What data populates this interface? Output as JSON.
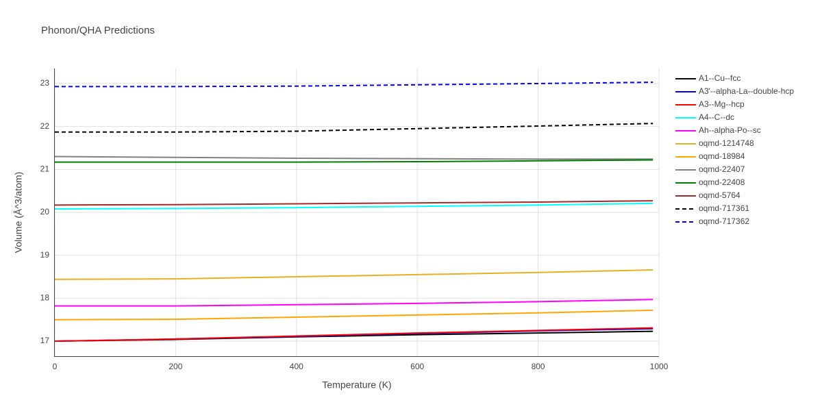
{
  "chart_data": {
    "type": "line",
    "title": "Phonon/QHA Predictions",
    "x_label": "Temperature (K)",
    "y_label": "Volume (Å^3/atom)",
    "x": [
      0,
      200,
      400,
      600,
      800,
      990
    ],
    "xlim": [
      0,
      1000
    ],
    "xticks": [
      0,
      200,
      400,
      600,
      800,
      1000
    ],
    "ylim": [
      16.65,
      23.35
    ],
    "yticks": [
      17,
      18,
      19,
      20,
      21,
      22,
      23
    ],
    "grid": true,
    "legend": "right",
    "series": [
      {
        "name": "A1--Cu--fcc",
        "color": "#000000",
        "values": [
          17.0,
          17.04,
          17.1,
          17.15,
          17.19,
          17.23
        ]
      },
      {
        "name": "A3'--alpha-La--double-hcp",
        "color": "#0000ff",
        "values": [
          17.0,
          17.05,
          17.11,
          17.18,
          17.24,
          17.29
        ]
      },
      {
        "name": "A3--Mg--hcp",
        "color": "#ff0000",
        "values": [
          17.0,
          17.05,
          17.12,
          17.19,
          17.25,
          17.31
        ]
      },
      {
        "name": "A4--C--dc",
        "color": "#00ffff",
        "values": [
          20.08,
          20.09,
          20.11,
          20.14,
          20.17,
          20.21
        ]
      },
      {
        "name": "Ah--alpha-Po--sc",
        "color": "#ff00ff",
        "values": [
          17.82,
          17.82,
          17.85,
          17.88,
          17.92,
          17.97
        ]
      },
      {
        "name": "oqmd-1214748",
        "color": "#e8b020",
        "values": [
          18.44,
          18.45,
          18.5,
          18.55,
          18.6,
          18.66
        ]
      },
      {
        "name": "oqmd-18984",
        "color": "#ffa500",
        "values": [
          17.5,
          17.51,
          17.56,
          17.61,
          17.66,
          17.72
        ]
      },
      {
        "name": "oqmd-22407",
        "color": "#808080",
        "values": [
          21.3,
          21.28,
          21.26,
          21.25,
          21.24,
          21.24
        ]
      },
      {
        "name": "oqmd-22408",
        "color": "#008000",
        "values": [
          21.17,
          21.17,
          21.17,
          21.18,
          21.2,
          21.22
        ]
      },
      {
        "name": "oqmd-5764",
        "color": "#a52a2a",
        "values": [
          20.17,
          20.18,
          20.2,
          20.22,
          20.24,
          20.27
        ]
      },
      {
        "name": "oqmd-717361",
        "color": "#000000",
        "dash": "dash",
        "values": [
          21.87,
          21.87,
          21.89,
          21.95,
          22.01,
          22.07
        ]
      },
      {
        "name": "oqmd-717362",
        "color": "#0000ff",
        "dash": "dash",
        "values": [
          22.93,
          22.93,
          22.94,
          22.97,
          23.0,
          23.03
        ]
      }
    ]
  }
}
